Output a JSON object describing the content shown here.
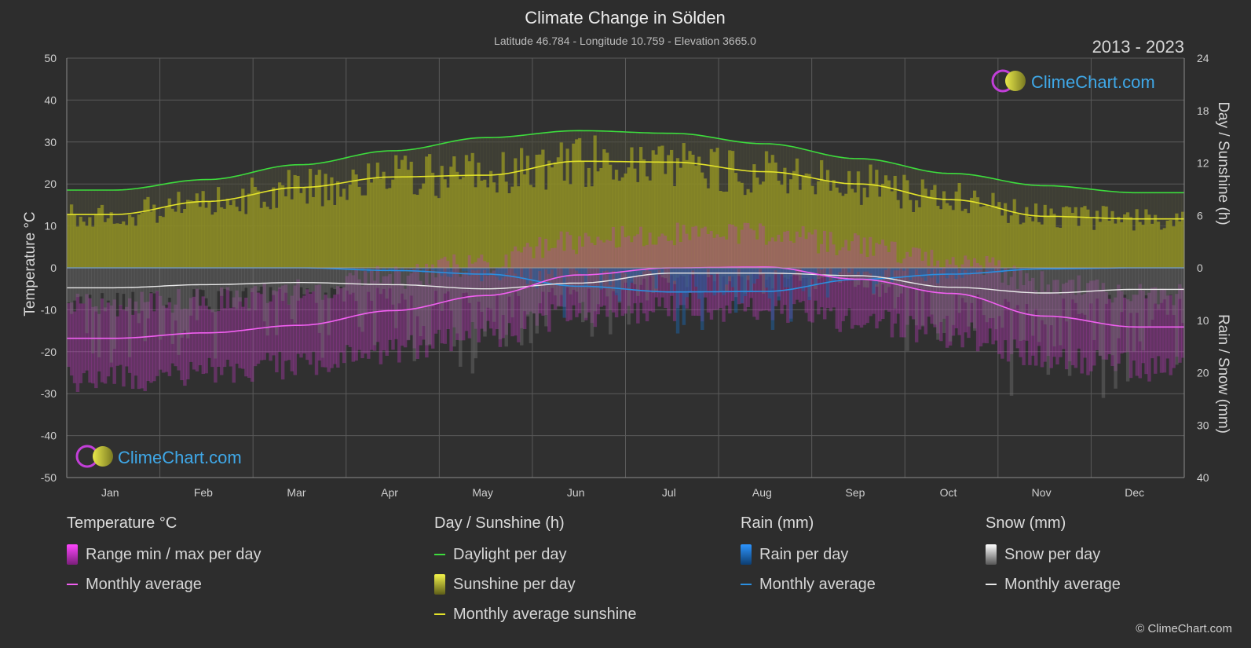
{
  "header": {
    "title": "Climate Change in Sölden",
    "subtitle": "Latitude 46.784 - Longitude 10.759 - Elevation 3665.0",
    "years": "2013 - 2023"
  },
  "brand": {
    "name": "ClimeChart.com",
    "copyright": "© ClimeChart.com"
  },
  "chart_data": {
    "type": "area",
    "x_categories": [
      "Jan",
      "Feb",
      "Mar",
      "Apr",
      "May",
      "Jun",
      "Jul",
      "Aug",
      "Sep",
      "Oct",
      "Nov",
      "Dec"
    ],
    "left_axis": {
      "label": "Temperature °C",
      "range": [
        -50,
        50
      ],
      "ticks": [
        50,
        40,
        30,
        20,
        10,
        0,
        -10,
        -20,
        -30,
        -40,
        -50
      ]
    },
    "right_axis_top": {
      "label": "Day / Sunshine (h)",
      "range": [
        0,
        24
      ],
      "ticks": [
        24,
        18,
        12,
        6,
        0
      ]
    },
    "right_axis_bottom": {
      "label": "Rain / Snow (mm)",
      "range": [
        0,
        40
      ],
      "ticks": [
        10,
        20,
        30,
        40
      ]
    },
    "series": [
      {
        "name": "Daylight per day",
        "unit": "h",
        "color": "#3ddc3d",
        "values": [
          8.9,
          10.1,
          11.8,
          13.4,
          14.9,
          15.7,
          15.4,
          14.2,
          12.5,
          10.8,
          9.4,
          8.6
        ]
      },
      {
        "name": "Monthly average sunshine",
        "unit": "h",
        "color": "#e3e32a",
        "values": [
          6.1,
          7.6,
          9.2,
          10.4,
          10.6,
          12.2,
          12.1,
          11.0,
          9.6,
          7.8,
          5.9,
          5.6
        ]
      },
      {
        "name": "Temperature monthly average",
        "unit": "°C",
        "color": "#f15ff1",
        "values": [
          -16.8,
          -15.5,
          -13.7,
          -10.2,
          -6.6,
          -1.7,
          0.0,
          0.2,
          -2.7,
          -6.1,
          -11.5,
          -14.1
        ]
      },
      {
        "name": "Rain monthly average",
        "unit": "mm",
        "color": "#2b8fe0",
        "values": [
          0.0,
          0.0,
          0.0,
          0.5,
          1.2,
          3.5,
          4.6,
          4.5,
          2.2,
          1.2,
          0.2,
          0.0
        ]
      },
      {
        "name": "Snow monthly average",
        "unit": "mm",
        "color": "#e8e8e8",
        "values": [
          3.8,
          3.2,
          2.8,
          3.2,
          4.0,
          2.9,
          1.0,
          1.0,
          1.5,
          3.7,
          4.8,
          4.1
        ]
      }
    ]
  },
  "legend": {
    "temperature": {
      "title": "Temperature °C",
      "items": [
        "Range min / max per day",
        "Monthly average"
      ]
    },
    "sunshine": {
      "title": "Day / Sunshine (h)",
      "items": [
        "Daylight per day",
        "Sunshine per day",
        "Monthly average sunshine"
      ]
    },
    "rain": {
      "title": "Rain (mm)",
      "items": [
        "Rain per day",
        "Monthly average"
      ]
    },
    "snow": {
      "title": "Snow (mm)",
      "items": [
        "Snow per day",
        "Monthly average"
      ]
    }
  }
}
